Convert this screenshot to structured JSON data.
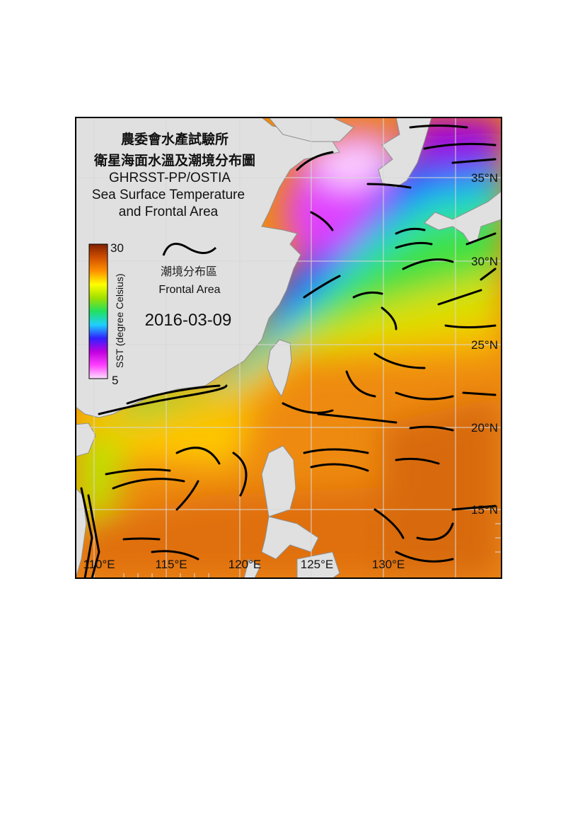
{
  "title": {
    "org": "農委會水產試驗所",
    "subtitle_cn": "衛星海面水溫及潮境分布圖",
    "dataset": "GHRSST-PP/OSTIA",
    "line1": "Sea Surface Temperature",
    "line2": "and Frontal Area"
  },
  "legend": {
    "front_cn": "潮境分布區",
    "front_en": "Frontal Area",
    "colorbar_label": "SST (degree Celsius)",
    "colorbar_min": "5",
    "colorbar_max": "30",
    "colors": [
      "#ffe0ff",
      "#ff40ff",
      "#c000e0",
      "#3020ff",
      "#20d0ff",
      "#20e060",
      "#a0e000",
      "#ffff00",
      "#ff9000",
      "#d05000",
      "#802000"
    ]
  },
  "date": "2016-03-09",
  "axes": {
    "lon_labels": [
      "110°E",
      "115°E",
      "120°E",
      "125°E",
      "130°E"
    ],
    "lat_labels": [
      "15°N",
      "20°N",
      "25°N",
      "30°N",
      "35°N"
    ]
  },
  "colors": {
    "land": "#e0e0e0",
    "front": "#000000",
    "grid": "#d8d8d8"
  }
}
